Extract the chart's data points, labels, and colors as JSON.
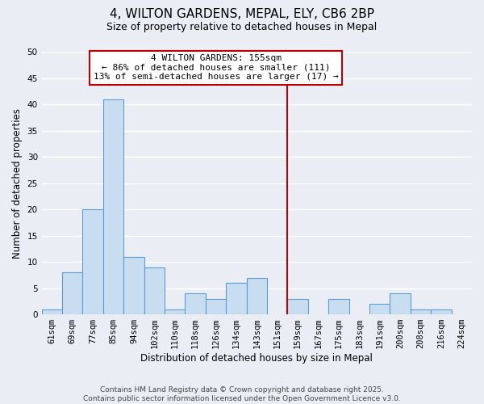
{
  "title": "4, WILTON GARDENS, MEPAL, ELY, CB6 2BP",
  "subtitle": "Size of property relative to detached houses in Mepal",
  "xlabel": "Distribution of detached houses by size in Mepal",
  "ylabel": "Number of detached properties",
  "bin_labels": [
    "61sqm",
    "69sqm",
    "77sqm",
    "85sqm",
    "94sqm",
    "102sqm",
    "110sqm",
    "118sqm",
    "126sqm",
    "134sqm",
    "143sqm",
    "151sqm",
    "159sqm",
    "167sqm",
    "175sqm",
    "183sqm",
    "191sqm",
    "200sqm",
    "208sqm",
    "216sqm",
    "224sqm"
  ],
  "bar_heights": [
    1,
    8,
    20,
    41,
    11,
    9,
    1,
    4,
    3,
    6,
    7,
    0,
    3,
    0,
    3,
    0,
    2,
    4,
    1,
    1,
    0
  ],
  "bar_color": "#c9ddf0",
  "bar_edge_color": "#5b9bd5",
  "vline_color": "#c00000",
  "annotation_title": "4 WILTON GARDENS: 155sqm",
  "annotation_line1": "← 86% of detached houses are smaller (111)",
  "annotation_line2": "13% of semi-detached houses are larger (17) →",
  "annotation_box_color": "#ffffff",
  "annotation_box_edge": "#c00000",
  "ylim": [
    0,
    50
  ],
  "yticks": [
    0,
    5,
    10,
    15,
    20,
    25,
    30,
    35,
    40,
    45,
    50
  ],
  "footnote1": "Contains HM Land Registry data © Crown copyright and database right 2025.",
  "footnote2": "Contains public sector information licensed under the Open Government Licence v3.0.",
  "bg_color": "#eaeef4",
  "grid_color": "#ffffff",
  "title_fontsize": 11,
  "subtitle_fontsize": 9,
  "label_fontsize": 8.5,
  "tick_fontsize": 7.5,
  "annot_fontsize": 8,
  "footnote_fontsize": 6.5
}
